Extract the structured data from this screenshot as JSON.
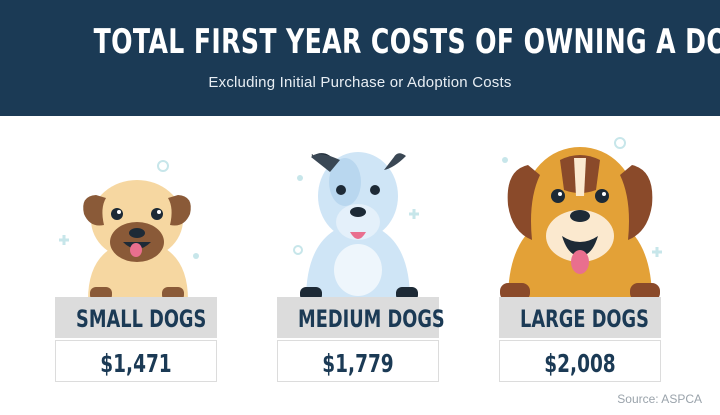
{
  "header": {
    "title": "TOTAL FIRST YEAR COSTS OF OWNING A DOG",
    "subtitle": "Excluding Initial Purchase or Adoption Costs"
  },
  "dogs": [
    {
      "label": "SMALL DOGS",
      "cost": "$1,471",
      "icon": "pug-dog-icon"
    },
    {
      "label": "MEDIUM DOGS",
      "cost": "$1,779",
      "icon": "pitbull-dog-icon"
    },
    {
      "label": "LARGE DOGS",
      "cost": "$2,008",
      "icon": "saint-bernard-dog-icon"
    }
  ],
  "source": "Source: ASPCA",
  "colors": {
    "header_bg": "#1b3a55",
    "label_bg": "#dcdcdc",
    "text_dark": "#1b3a55",
    "accent_teal": "#c7e6ea"
  }
}
